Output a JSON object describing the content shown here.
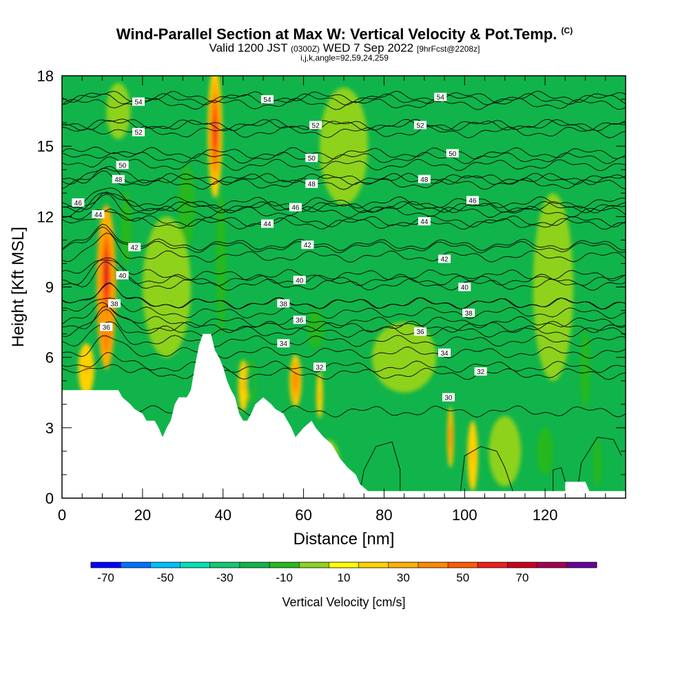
{
  "title": {
    "main": "Wind-Parallel Section at Max W: Vertical Velocity & Pot.Temp.",
    "copyright": "(C)",
    "valid_prefix": "Valid 1200 JST",
    "valid_z": "(0300Z)",
    "valid_date": "WED 7 Sep 2022",
    "fcst": "[9hrFcst@2208z]",
    "params": "i,j,k,angle=92,59,24,259"
  },
  "chart_data": {
    "type": "heatmap",
    "xlabel": "Distance [nm]",
    "ylabel": "Height [Kft MSL]",
    "xlim": [
      0,
      140
    ],
    "ylim": [
      0,
      18
    ],
    "x_ticks": [
      "0",
      "20",
      "40",
      "60",
      "80",
      "100",
      "120"
    ],
    "y_ticks": [
      "0",
      "3",
      "6",
      "9",
      "12",
      "15",
      "18"
    ],
    "colorbar": {
      "label": "Vertical Velocity [cm/s]",
      "tick_labels": [
        "-70",
        "-50",
        "-30",
        "-10",
        "10",
        "30",
        "50",
        "70"
      ],
      "levels": [
        -80,
        -70,
        -60,
        -50,
        -40,
        -30,
        -20,
        -10,
        0,
        10,
        20,
        30,
        40,
        50,
        60,
        70,
        80
      ],
      "colors": [
        "#0000ff",
        "#0072ff",
        "#00bfff",
        "#00e0b8",
        "#15c870",
        "#10b44a",
        "#27b81f",
        "#8ed21e",
        "#ffff00",
        "#ffd200",
        "#ffb000",
        "#ff8800",
        "#ff5a00",
        "#ee2020",
        "#c8001e",
        "#a00050",
        "#660099"
      ]
    },
    "background_level": 5,
    "terrain_kft": [
      [
        0,
        4.6
      ],
      [
        10,
        4.6
      ],
      [
        14,
        4.6
      ],
      [
        15,
        4.3
      ],
      [
        17,
        4.0
      ],
      [
        18,
        3.8
      ],
      [
        20,
        3.6
      ],
      [
        21,
        3.3
      ],
      [
        23,
        3.3
      ],
      [
        24,
        3.0
      ],
      [
        25,
        2.6
      ],
      [
        26,
        3.0
      ],
      [
        27,
        3.3
      ],
      [
        28,
        4.0
      ],
      [
        29,
        4.3
      ],
      [
        30,
        4.3
      ],
      [
        31,
        4.3
      ],
      [
        32,
        4.6
      ],
      [
        33,
        5.6
      ],
      [
        34,
        6.5
      ],
      [
        35,
        7.0
      ],
      [
        37,
        7.0
      ],
      [
        38,
        6.3
      ],
      [
        39,
        6.0
      ],
      [
        40,
        5.6
      ],
      [
        41,
        5.0
      ],
      [
        42,
        4.6
      ],
      [
        43,
        4.3
      ],
      [
        44,
        3.6
      ],
      [
        45,
        3.3
      ],
      [
        46,
        3.3
      ],
      [
        47,
        3.6
      ],
      [
        48,
        4.0
      ],
      [
        50,
        4.3
      ],
      [
        52,
        4.0
      ],
      [
        53,
        3.8
      ],
      [
        55,
        3.6
      ],
      [
        56,
        3.3
      ],
      [
        57,
        3.0
      ],
      [
        58,
        2.6
      ],
      [
        60,
        3.0
      ],
      [
        62,
        3.3
      ],
      [
        63,
        3.0
      ],
      [
        65,
        2.6
      ],
      [
        67,
        2.3
      ],
      [
        69,
        1.7
      ],
      [
        71,
        1.3
      ],
      [
        73,
        1.0
      ],
      [
        74,
        0.6
      ],
      [
        76,
        0.3
      ],
      [
        125,
        0.3
      ],
      [
        125,
        0.7
      ],
      [
        130,
        0.7
      ],
      [
        131,
        0.3
      ],
      [
        140,
        0.3
      ]
    ],
    "w_cells": [
      {
        "x": 11,
        "y": 9.0,
        "rx": 2.4,
        "ry": 3.5,
        "w": 75
      },
      {
        "x": 11,
        "y": 9.5,
        "rx": 1.5,
        "ry": 2.5,
        "w": 60
      },
      {
        "x": 38,
        "y": 15.6,
        "rx": 1.8,
        "ry": 2.8,
        "w": 50
      },
      {
        "x": 58,
        "y": 5.0,
        "rx": 1.5,
        "ry": 1.1,
        "w": 35
      },
      {
        "x": 96.5,
        "y": 2.6,
        "rx": 0.8,
        "ry": 1.3,
        "w": 35
      },
      {
        "x": 102,
        "y": 1.8,
        "rx": 1.3,
        "ry": 1.5,
        "w": 20
      },
      {
        "x": 6,
        "y": 5.5,
        "rx": 2.0,
        "ry": 1.1,
        "w": 22
      },
      {
        "x": 45,
        "y": 4.8,
        "rx": 1.2,
        "ry": 1.1,
        "w": 22
      },
      {
        "x": 64,
        "y": 4.4,
        "rx": 0.8,
        "ry": 1.0,
        "w": 20
      },
      {
        "x": 31,
        "y": 12.5,
        "rx": 2.0,
        "ry": 1.7,
        "w": -20
      },
      {
        "x": 39.5,
        "y": 10.0,
        "rx": 1.2,
        "ry": 3.0,
        "w": -20
      },
      {
        "x": 63,
        "y": 7.2,
        "rx": 2.0,
        "ry": 0.8,
        "w": -20
      },
      {
        "x": 47,
        "y": 5.0,
        "rx": 1.3,
        "ry": 0.9,
        "w": -30
      },
      {
        "x": 16,
        "y": 11.5,
        "rx": 1.3,
        "ry": 1.6,
        "w": -15
      },
      {
        "x": 14,
        "y": 16.5,
        "rx": 3.0,
        "ry": 1.2,
        "w": -10
      },
      {
        "x": 130,
        "y": 5.5,
        "rx": 1.2,
        "ry": 1.6,
        "w": -18
      },
      {
        "x": 133,
        "y": 1.5,
        "rx": 1.0,
        "ry": 1.0,
        "w": -18
      },
      {
        "x": 120,
        "y": 2.0,
        "rx": 2.0,
        "ry": 1.0,
        "w": -15
      },
      {
        "x": 122,
        "y": 9.0,
        "rx": 5.0,
        "ry": 4.0,
        "w": -8
      },
      {
        "x": 26,
        "y": 9.0,
        "rx": 6.0,
        "ry": 3.0,
        "w": -8
      },
      {
        "x": 70,
        "y": 15.0,
        "rx": 6.0,
        "ry": 2.5,
        "w": -8
      },
      {
        "x": 85,
        "y": 6.0,
        "rx": 8.0,
        "ry": 1.5,
        "w": -8
      },
      {
        "x": 110,
        "y": 2.0,
        "rx": 4.0,
        "ry": 1.5,
        "w": -8
      },
      {
        "x": 66,
        "y": 1.5,
        "rx": 3.0,
        "ry": 1.0,
        "w": -8
      }
    ],
    "theta_contours": [
      {
        "label": "30",
        "base": 3.7,
        "lx": 96,
        "ly": 4.3
      },
      {
        "label": "32",
        "base": 5.3,
        "lx": 104,
        "ly": 5.4
      },
      {
        "label": "32",
        "base": 5.6,
        "lx": 64,
        "ly": 5.6
      },
      {
        "label": "34",
        "base": 6.2,
        "lx": 95,
        "ly": 6.2
      },
      {
        "label": "34",
        "base": 6.7,
        "lx": 55,
        "ly": 6.6
      },
      {
        "label": "36",
        "base": 7.1,
        "lx": 89,
        "ly": 7.1
      },
      {
        "label": "36",
        "base": 7.5,
        "lx": 59,
        "ly": 7.6
      },
      {
        "label": "38",
        "base": 7.9,
        "lx": 101,
        "ly": 7.9
      },
      {
        "label": "38",
        "base": 8.3,
        "lx": 55,
        "ly": 8.3
      },
      {
        "label": "40",
        "base": 9.1,
        "lx": 100,
        "ly": 9.0
      },
      {
        "label": "40",
        "base": 9.3,
        "lx": 59,
        "ly": 9.3
      },
      {
        "label": "42",
        "base": 10.3,
        "lx": 95,
        "ly": 10.2
      },
      {
        "label": "42",
        "base": 10.8,
        "lx": 61,
        "ly": 10.8
      },
      {
        "label": "44",
        "base": 11.8,
        "lx": 90,
        "ly": 11.8
      },
      {
        "label": "44",
        "base": 11.7,
        "lx": 51,
        "ly": 11.7
      },
      {
        "label": "46",
        "base": 12.4,
        "lx": 102,
        "ly": 12.7
      },
      {
        "label": "46",
        "base": 12.4,
        "lx": 58,
        "ly": 12.4
      },
      {
        "label": "48",
        "base": 13.6,
        "lx": 90,
        "ly": 13.6
      },
      {
        "label": "48",
        "base": 13.4,
        "lx": 62,
        "ly": 13.4
      },
      {
        "label": "50",
        "base": 14.7,
        "lx": 97,
        "ly": 14.7
      },
      {
        "label": "50",
        "base": 14.5,
        "lx": 62,
        "ly": 14.5
      },
      {
        "label": "52",
        "base": 15.9,
        "lx": 89,
        "ly": 15.9
      },
      {
        "label": "52",
        "base": 15.9,
        "lx": 63,
        "ly": 15.9
      },
      {
        "label": "54",
        "base": 17.1,
        "lx": 94,
        "ly": 17.1
      },
      {
        "label": "54",
        "base": 17.0,
        "lx": 51,
        "ly": 17.0
      },
      {
        "label": "54",
        "base": 16.8,
        "lx": 19,
        "ly": 16.9
      },
      {
        "label": "52",
        "base": 15.6,
        "lx": 19,
        "ly": 15.6
      },
      {
        "label": "50",
        "base": 14.2,
        "lx": 15,
        "ly": 14.2
      },
      {
        "label": "48",
        "base": 13.6,
        "lx": 14,
        "ly": 13.6
      },
      {
        "label": "46",
        "base": 12.6,
        "lx": 4,
        "ly": 12.6
      },
      {
        "label": "44",
        "base": 12.2,
        "lx": 9,
        "ly": 12.1
      },
      {
        "label": "42",
        "base": 10.7,
        "lx": 18,
        "ly": 10.7
      },
      {
        "label": "40",
        "base": 9.5,
        "lx": 15,
        "ly": 9.5
      },
      {
        "label": "38",
        "base": 8.3,
        "lx": 13,
        "ly": 8.3
      },
      {
        "label": "36",
        "base": 7.3,
        "lx": 11,
        "ly": 7.3
      }
    ],
    "low_level_closed_contours": [
      [
        [
          74,
          0.3
        ],
        [
          75,
          1.2
        ],
        [
          78,
          2.2
        ],
        [
          82,
          2.4
        ],
        [
          84,
          1.2
        ],
        [
          84,
          0.3
        ]
      ],
      [
        [
          99,
          0.3
        ],
        [
          100,
          1.8
        ],
        [
          104,
          2.2
        ],
        [
          108,
          2.0
        ],
        [
          110,
          1.3
        ],
        [
          112,
          0.3
        ]
      ],
      [
        [
          122,
          0.3
        ],
        [
          122,
          1.2
        ],
        [
          124,
          1.3
        ],
        [
          125,
          0.7
        ]
      ],
      [
        [
          128,
          0.3
        ],
        [
          129,
          1.5
        ],
        [
          133,
          2.6
        ],
        [
          137,
          2.5
        ],
        [
          139,
          1.8
        ]
      ]
    ]
  }
}
